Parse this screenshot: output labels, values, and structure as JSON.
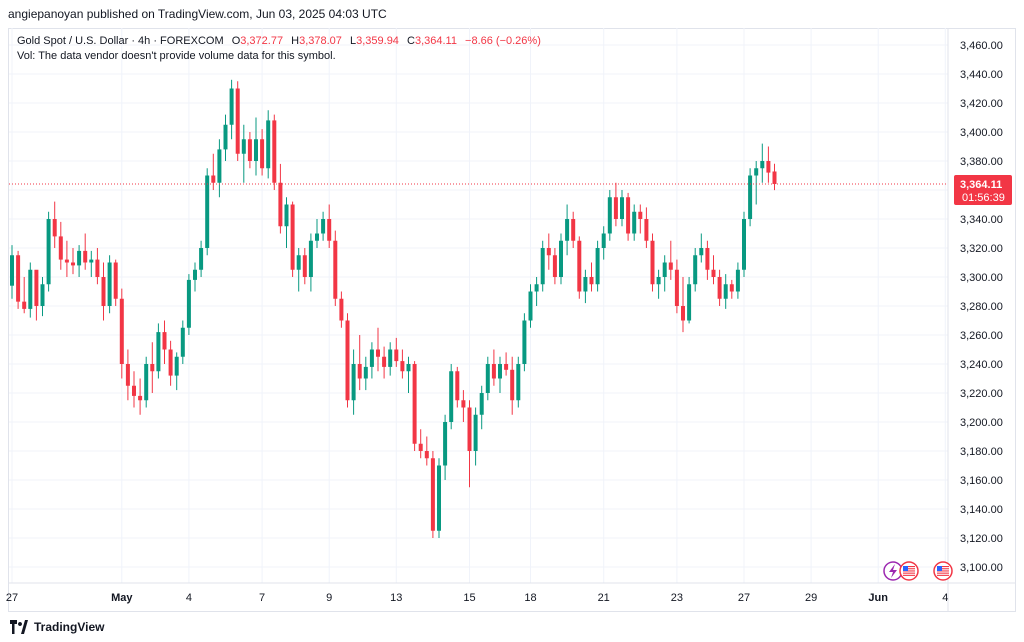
{
  "header": {
    "published": "angiepanoyan published on TradingView.com, Jun 03, 2025 04:03 UTC"
  },
  "legend": {
    "symbol": "Gold Spot / U.S. Dollar · 4h · FOREXCOM",
    "open_label": "O",
    "open": "3,372.77",
    "high_label": "H",
    "high": "3,378.07",
    "low_label": "L",
    "low": "3,359.94",
    "close_label": "C",
    "close": "3,364.11",
    "change": "−8.66 (−0.26%)",
    "vol_note": "Vol: The data vendor doesn't provide volume data for this symbol."
  },
  "price_tag": {
    "price": "3,364.11",
    "countdown": "01:56:39",
    "color": "#f23645"
  },
  "footer": {
    "brand": "TradingView"
  },
  "colors": {
    "up": "#089981",
    "down": "#f23645",
    "grid": "#f0f3fa",
    "axis_text": "#131722"
  },
  "icons": [
    "lightning-event-icon",
    "us-flag-event-icon",
    "us-flag-event-icon"
  ],
  "chart_data": {
    "type": "candlestick",
    "title": "Gold Spot / U.S. Dollar · 4h · FOREXCOM",
    "ylim": [
      3090,
      3470
    ],
    "y_ticks": [
      3100,
      3120,
      3140,
      3160,
      3180,
      3200,
      3220,
      3240,
      3260,
      3280,
      3300,
      3320,
      3340,
      3360,
      3380,
      3400,
      3420,
      3440,
      3460
    ],
    "y_tick_labels": [
      "3,100.00",
      "3,120.00",
      "3,140.00",
      "3,160.00",
      "3,180.00",
      "3,200.00",
      "3,220.00",
      "3,240.00",
      "3,260.00",
      "3,280.00",
      "3,300.00",
      "3,320.00",
      "3,340.00",
      "3,360.00",
      "3,380.00",
      "3,400.00",
      "3,420.00",
      "3,440.00",
      "3,460.00"
    ],
    "x_labels": [
      {
        "label": "27",
        "bar": 0
      },
      {
        "label": "May",
        "bar": 18
      },
      {
        "label": "4",
        "bar": 29
      },
      {
        "label": "7",
        "bar": 41
      },
      {
        "label": "9",
        "bar": 52
      },
      {
        "label": "13",
        "bar": 63
      },
      {
        "label": "15",
        "bar": 75
      },
      {
        "label": "18",
        "bar": 85
      },
      {
        "label": "21",
        "bar": 97
      },
      {
        "label": "23",
        "bar": 109
      },
      {
        "label": "27",
        "bar": 120
      },
      {
        "label": "29",
        "bar": 131
      },
      {
        "label": "Jun",
        "bar": 142
      },
      {
        "label": "4",
        "bar": 153
      }
    ],
    "last_price": 3364.11,
    "candles": [
      [
        3294,
        3322,
        3285,
        3315
      ],
      [
        3315,
        3318,
        3278,
        3283
      ],
      [
        3283,
        3300,
        3275,
        3278
      ],
      [
        3278,
        3310,
        3272,
        3305
      ],
      [
        3305,
        3302,
        3270,
        3280
      ],
      [
        3280,
        3300,
        3273,
        3295
      ],
      [
        3295,
        3345,
        3290,
        3340
      ],
      [
        3340,
        3352,
        3320,
        3328
      ],
      [
        3328,
        3338,
        3305,
        3312
      ],
      [
        3312,
        3325,
        3300,
        3310
      ],
      [
        3310,
        3320,
        3302,
        3308
      ],
      [
        3308,
        3322,
        3300,
        3318
      ],
      [
        3318,
        3330,
        3305,
        3310
      ],
      [
        3310,
        3318,
        3300,
        3312
      ],
      [
        3312,
        3320,
        3295,
        3300
      ],
      [
        3300,
        3310,
        3270,
        3280
      ],
      [
        3280,
        3315,
        3275,
        3310
      ],
      [
        3310,
        3312,
        3280,
        3285
      ],
      [
        3285,
        3292,
        3230,
        3240
      ],
      [
        3240,
        3250,
        3215,
        3225
      ],
      [
        3225,
        3235,
        3210,
        3218
      ],
      [
        3218,
        3230,
        3205,
        3215
      ],
      [
        3215,
        3245,
        3210,
        3240
      ],
      [
        3240,
        3255,
        3220,
        3235
      ],
      [
        3235,
        3268,
        3230,
        3262
      ],
      [
        3262,
        3270,
        3240,
        3250
      ],
      [
        3250,
        3256,
        3225,
        3232
      ],
      [
        3232,
        3248,
        3222,
        3245
      ],
      [
        3245,
        3270,
        3240,
        3265
      ],
      [
        3265,
        3302,
        3260,
        3298
      ],
      [
        3298,
        3310,
        3290,
        3305
      ],
      [
        3305,
        3325,
        3300,
        3320
      ],
      [
        3320,
        3375,
        3315,
        3370
      ],
      [
        3370,
        3385,
        3360,
        3365
      ],
      [
        3365,
        3395,
        3355,
        3388
      ],
      [
        3388,
        3412,
        3380,
        3405
      ],
      [
        3405,
        3436,
        3395,
        3430
      ],
      [
        3430,
        3435,
        3380,
        3385
      ],
      [
        3385,
        3405,
        3365,
        3395
      ],
      [
        3395,
        3400,
        3375,
        3380
      ],
      [
        3380,
        3410,
        3370,
        3395
      ],
      [
        3395,
        3402,
        3370,
        3375
      ],
      [
        3375,
        3415,
        3368,
        3408
      ],
      [
        3408,
        3412,
        3360,
        3365
      ],
      [
        3365,
        3378,
        3330,
        3335
      ],
      [
        3335,
        3355,
        3320,
        3350
      ],
      [
        3350,
        3352,
        3300,
        3305
      ],
      [
        3305,
        3320,
        3290,
        3315
      ],
      [
        3315,
        3320,
        3295,
        3300
      ],
      [
        3300,
        3330,
        3290,
        3325
      ],
      [
        3325,
        3340,
        3320,
        3330
      ],
      [
        3330,
        3345,
        3325,
        3340
      ],
      [
        3340,
        3350,
        3320,
        3325
      ],
      [
        3325,
        3332,
        3280,
        3285
      ],
      [
        3285,
        3290,
        3265,
        3270
      ],
      [
        3270,
        3275,
        3210,
        3215
      ],
      [
        3215,
        3250,
        3205,
        3240
      ],
      [
        3240,
        3260,
        3222,
        3230
      ],
      [
        3230,
        3245,
        3222,
        3238
      ],
      [
        3238,
        3255,
        3230,
        3250
      ],
      [
        3250,
        3265,
        3235,
        3245
      ],
      [
        3245,
        3252,
        3230,
        3238
      ],
      [
        3238,
        3255,
        3232,
        3250
      ],
      [
        3250,
        3258,
        3238,
        3242
      ],
      [
        3242,
        3250,
        3230,
        3235
      ],
      [
        3235,
        3245,
        3220,
        3240
      ],
      [
        3240,
        3242,
        3180,
        3185
      ],
      [
        3185,
        3195,
        3175,
        3180
      ],
      [
        3180,
        3190,
        3170,
        3175
      ],
      [
        3175,
        3180,
        3120,
        3125
      ],
      [
        3125,
        3175,
        3120,
        3170
      ],
      [
        3170,
        3205,
        3160,
        3200
      ],
      [
        3200,
        3240,
        3195,
        3235
      ],
      [
        3235,
        3238,
        3210,
        3215
      ],
      [
        3215,
        3222,
        3200,
        3210
      ],
      [
        3210,
        3215,
        3155,
        3180
      ],
      [
        3180,
        3210,
        3170,
        3205
      ],
      [
        3205,
        3225,
        3195,
        3220
      ],
      [
        3220,
        3245,
        3215,
        3240
      ],
      [
        3240,
        3250,
        3225,
        3230
      ],
      [
        3230,
        3245,
        3220,
        3240
      ],
      [
        3240,
        3248,
        3232,
        3236
      ],
      [
        3236,
        3245,
        3205,
        3215
      ],
      [
        3215,
        3245,
        3210,
        3240
      ],
      [
        3240,
        3275,
        3235,
        3270
      ],
      [
        3270,
        3295,
        3265,
        3290
      ],
      [
        3290,
        3300,
        3280,
        3295
      ],
      [
        3295,
        3325,
        3290,
        3320
      ],
      [
        3320,
        3330,
        3305,
        3315
      ],
      [
        3315,
        3320,
        3295,
        3300
      ],
      [
        3300,
        3330,
        3295,
        3325
      ],
      [
        3325,
        3350,
        3315,
        3340
      ],
      [
        3340,
        3345,
        3320,
        3325
      ],
      [
        3325,
        3328,
        3285,
        3290
      ],
      [
        3290,
        3305,
        3282,
        3300
      ],
      [
        3300,
        3310,
        3290,
        3295
      ],
      [
        3295,
        3325,
        3290,
        3320
      ],
      [
        3320,
        3335,
        3312,
        3330
      ],
      [
        3330,
        3360,
        3325,
        3355
      ],
      [
        3355,
        3365,
        3335,
        3340
      ],
      [
        3340,
        3360,
        3335,
        3355
      ],
      [
        3355,
        3358,
        3325,
        3330
      ],
      [
        3330,
        3350,
        3325,
        3345
      ],
      [
        3345,
        3350,
        3330,
        3340
      ],
      [
        3340,
        3348,
        3320,
        3325
      ],
      [
        3325,
        3330,
        3290,
        3295
      ],
      [
        3295,
        3305,
        3285,
        3300
      ],
      [
        3300,
        3315,
        3290,
        3310
      ],
      [
        3310,
        3325,
        3298,
        3305
      ],
      [
        3305,
        3312,
        3275,
        3280
      ],
      [
        3280,
        3300,
        3262,
        3270
      ],
      [
        3270,
        3300,
        3268,
        3295
      ],
      [
        3295,
        3320,
        3290,
        3315
      ],
      [
        3315,
        3330,
        3310,
        3320
      ],
      [
        3320,
        3325,
        3298,
        3305
      ],
      [
        3305,
        3315,
        3295,
        3300
      ],
      [
        3300,
        3305,
        3280,
        3285
      ],
      [
        3285,
        3302,
        3278,
        3295
      ],
      [
        3295,
        3298,
        3285,
        3290
      ],
      [
        3290,
        3310,
        3285,
        3305
      ],
      [
        3305,
        3345,
        3300,
        3340
      ],
      [
        3340,
        3375,
        3335,
        3370
      ],
      [
        3370,
        3380,
        3350,
        3375
      ],
      [
        3375,
        3392,
        3365,
        3380
      ],
      [
        3380,
        3390,
        3365,
        3372
      ],
      [
        3372.77,
        3378.07,
        3359.94,
        3364.11
      ]
    ]
  }
}
